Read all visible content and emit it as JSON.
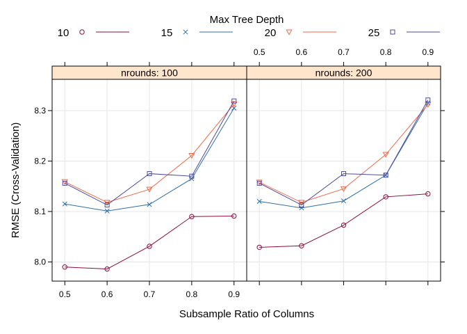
{
  "chart_data": {
    "type": "line",
    "legend": {
      "title": "Max Tree Depth",
      "placement": "top"
    },
    "xlabel": "Subsample Ratio of Columns",
    "ylabel": "RMSE (Cross-Validation)",
    "x": [
      0.5,
      0.6,
      0.7,
      0.8,
      0.9
    ],
    "x_ticks": [
      "0.5",
      "0.6",
      "0.7",
      "0.8",
      "0.9"
    ],
    "xlim": [
      0.47,
      0.93
    ],
    "ylim": [
      7.962,
      8.362
    ],
    "y_ticks": [
      8.0,
      8.1,
      8.2,
      8.3
    ],
    "y_tick_labels": [
      "8.0",
      "8.1",
      "8.2",
      "8.3"
    ],
    "grid": true,
    "series": [
      {
        "name": "10",
        "color": "#8B0C3E",
        "marker": "circle"
      },
      {
        "name": "15",
        "color": "#2E6FA8",
        "marker": "cross"
      },
      {
        "name": "20",
        "color": "#EE6A4A",
        "marker": "triangle-down"
      },
      {
        "name": "25",
        "color": "#4B4A9E",
        "marker": "square"
      }
    ],
    "panels": [
      {
        "strip": "nrounds: 100",
        "values": {
          "10": [
            7.99,
            7.986,
            8.031,
            8.09,
            8.091
          ],
          "15": [
            8.115,
            8.101,
            8.114,
            8.165,
            8.305
          ],
          "20": [
            8.159,
            8.118,
            8.144,
            8.211,
            8.313
          ],
          "25": [
            8.156,
            8.113,
            8.175,
            8.17,
            8.319
          ]
        }
      },
      {
        "strip": "nrounds: 200",
        "values": {
          "10": [
            8.029,
            8.032,
            8.073,
            8.129,
            8.135
          ],
          "15": [
            8.12,
            8.107,
            8.121,
            8.172,
            8.315
          ],
          "20": [
            8.158,
            8.118,
            8.145,
            8.213,
            8.312
          ],
          "25": [
            8.156,
            8.113,
            8.175,
            8.172,
            8.321
          ]
        }
      }
    ]
  }
}
